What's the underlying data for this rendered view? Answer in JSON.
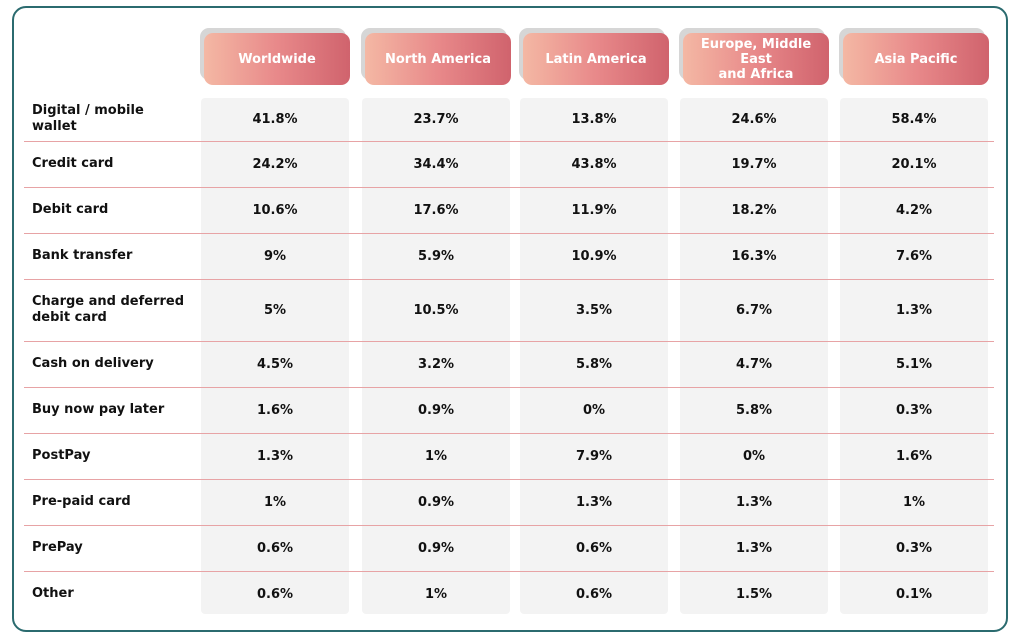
{
  "table": {
    "columns": [
      "Worldwide",
      "North America",
      "Latin America",
      "Europe, Middle East\nand Africa",
      "Asia Pacific"
    ],
    "rows": [
      {
        "label": "Digital / mobile wallet",
        "values": [
          "41.8%",
          "23.7%",
          "13.8%",
          "24.6%",
          "58.4%"
        ]
      },
      {
        "label": "Credit card",
        "values": [
          "24.2%",
          "34.4%",
          "43.8%",
          "19.7%",
          "20.1%"
        ]
      },
      {
        "label": "Debit card",
        "values": [
          "10.6%",
          "17.6%",
          "11.9%",
          "18.2%",
          "4.2%"
        ]
      },
      {
        "label": "Bank transfer",
        "values": [
          "9%",
          "5.9%",
          "10.9%",
          "16.3%",
          "7.6%"
        ]
      },
      {
        "label": "Charge and deferred\ndebit card",
        "values": [
          "5%",
          "10.5%",
          "3.5%",
          "6.7%",
          "1.3%"
        ]
      },
      {
        "label": "Cash on delivery",
        "values": [
          "4.5%",
          "3.2%",
          "5.8%",
          "4.7%",
          "5.1%"
        ]
      },
      {
        "label": "Buy now pay later",
        "values": [
          "1.6%",
          "0.9%",
          "0%",
          "5.8%",
          "0.3%"
        ]
      },
      {
        "label": "PostPay",
        "values": [
          "1.3%",
          "1%",
          "7.9%",
          "0%",
          "1.6%"
        ]
      },
      {
        "label": "Pre-paid card",
        "values": [
          "1%",
          "0.9%",
          "1.3%",
          "1.3%",
          "1%"
        ]
      },
      {
        "label": "PrePay",
        "values": [
          "0.6%",
          "0.9%",
          "0.6%",
          "1.3%",
          "0.3%"
        ]
      },
      {
        "label": "Other",
        "values": [
          "0.6%",
          "1%",
          "0.6%",
          "1.5%",
          "0.1%"
        ]
      }
    ]
  },
  "chart_data": {
    "type": "table",
    "columns": [
      "Worldwide",
      "North America",
      "Latin America",
      "Europe, Middle East and Africa",
      "Asia Pacific"
    ],
    "rows": [
      "Digital / mobile wallet",
      "Credit card",
      "Debit card",
      "Bank transfer",
      "Charge and deferred debit card",
      "Cash on delivery",
      "Buy now pay later",
      "PostPay",
      "Pre-paid card",
      "PrePay",
      "Other"
    ],
    "values_percent": [
      [
        41.8,
        23.7,
        13.8,
        24.6,
        58.4
      ],
      [
        24.2,
        34.4,
        43.8,
        19.7,
        20.1
      ],
      [
        10.6,
        17.6,
        11.9,
        18.2,
        4.2
      ],
      [
        9,
        5.9,
        10.9,
        16.3,
        7.6
      ],
      [
        5,
        10.5,
        3.5,
        6.7,
        1.3
      ],
      [
        4.5,
        3.2,
        5.8,
        4.7,
        5.1
      ],
      [
        1.6,
        0.9,
        0,
        5.8,
        0.3
      ],
      [
        1.3,
        1,
        7.9,
        0,
        1.6
      ],
      [
        1,
        0.9,
        1.3,
        1.3,
        1
      ],
      [
        0.6,
        0.9,
        0.6,
        1.3,
        0.3
      ],
      [
        0.6,
        1,
        0.6,
        1.5,
        0.1
      ]
    ]
  },
  "colors": {
    "border": "#2b6b6f",
    "header_gradient": [
      "#f4b8a4",
      "#e8898a",
      "#d0636d"
    ],
    "row_divider": "#e7a3a5",
    "column_background": "#f3f3f3"
  }
}
